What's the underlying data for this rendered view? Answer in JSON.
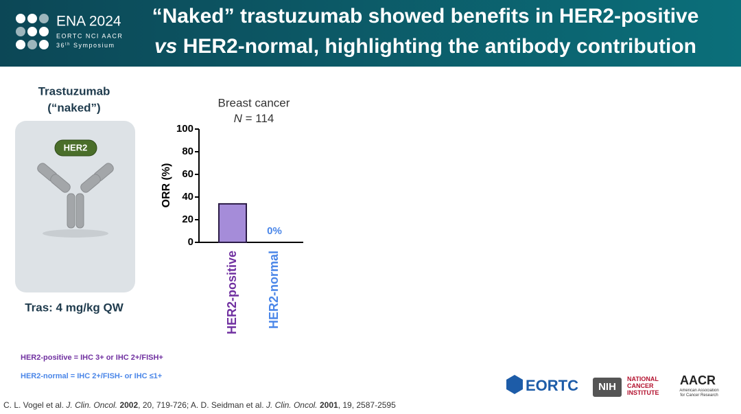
{
  "header": {
    "logo_title": "ENA 2024",
    "logo_sub": "EORTC NCI AACR",
    "logo_num": "36",
    "logo_sup": "th",
    "logo_word": "Symposium",
    "title_line1": "“Naked” trastuzumab showed benefits in HER2-positive",
    "title_line2_em": "vs",
    "title_line2": "HER2-normal, highlighting the antibody contribution"
  },
  "drug": {
    "name": "Trastuzumab",
    "note": "(“naked”)",
    "target": "HER2",
    "dose": "Tras: 4 mg/kg QW"
  },
  "chart_data": {
    "type": "bar",
    "title": "Breast cancer",
    "subtitle_em": "N",
    "subtitle": "= 114",
    "y_label": "ORR (%)",
    "categories": [
      "HER2-positive",
      "HER2-normal"
    ],
    "values": [
      34,
      0
    ],
    "value_labels": [
      null,
      "0%"
    ],
    "colors": [
      "#a58cd9",
      "#4a86e8"
    ],
    "label_colors": [
      "#7030a0",
      "#4a86e8"
    ],
    "edge_color": "#2a1a45",
    "ylim": [
      0,
      100
    ],
    "yticks": [
      0,
      20,
      40,
      60,
      80,
      100
    ]
  },
  "definitions": [
    "HER2-positive = IHC 3+ or IHC 2+/FISH+",
    "HER2-normal = IHC 2+/FISH- or IHC ≤1+"
  ],
  "reference": [
    "C. L. Vogel et al.",
    "J. Clin. Oncol.",
    "2002",
    ", 20, 719-726; A. D. Seidman et al.",
    "J. Clin. Oncol.",
    "2001",
    ", 19, 2587-2595"
  ],
  "logos": [
    "EORTC",
    "NIH",
    "NATIONAL CANCER INSTITUTE",
    "AACR",
    "American Association for Cancer Research"
  ]
}
